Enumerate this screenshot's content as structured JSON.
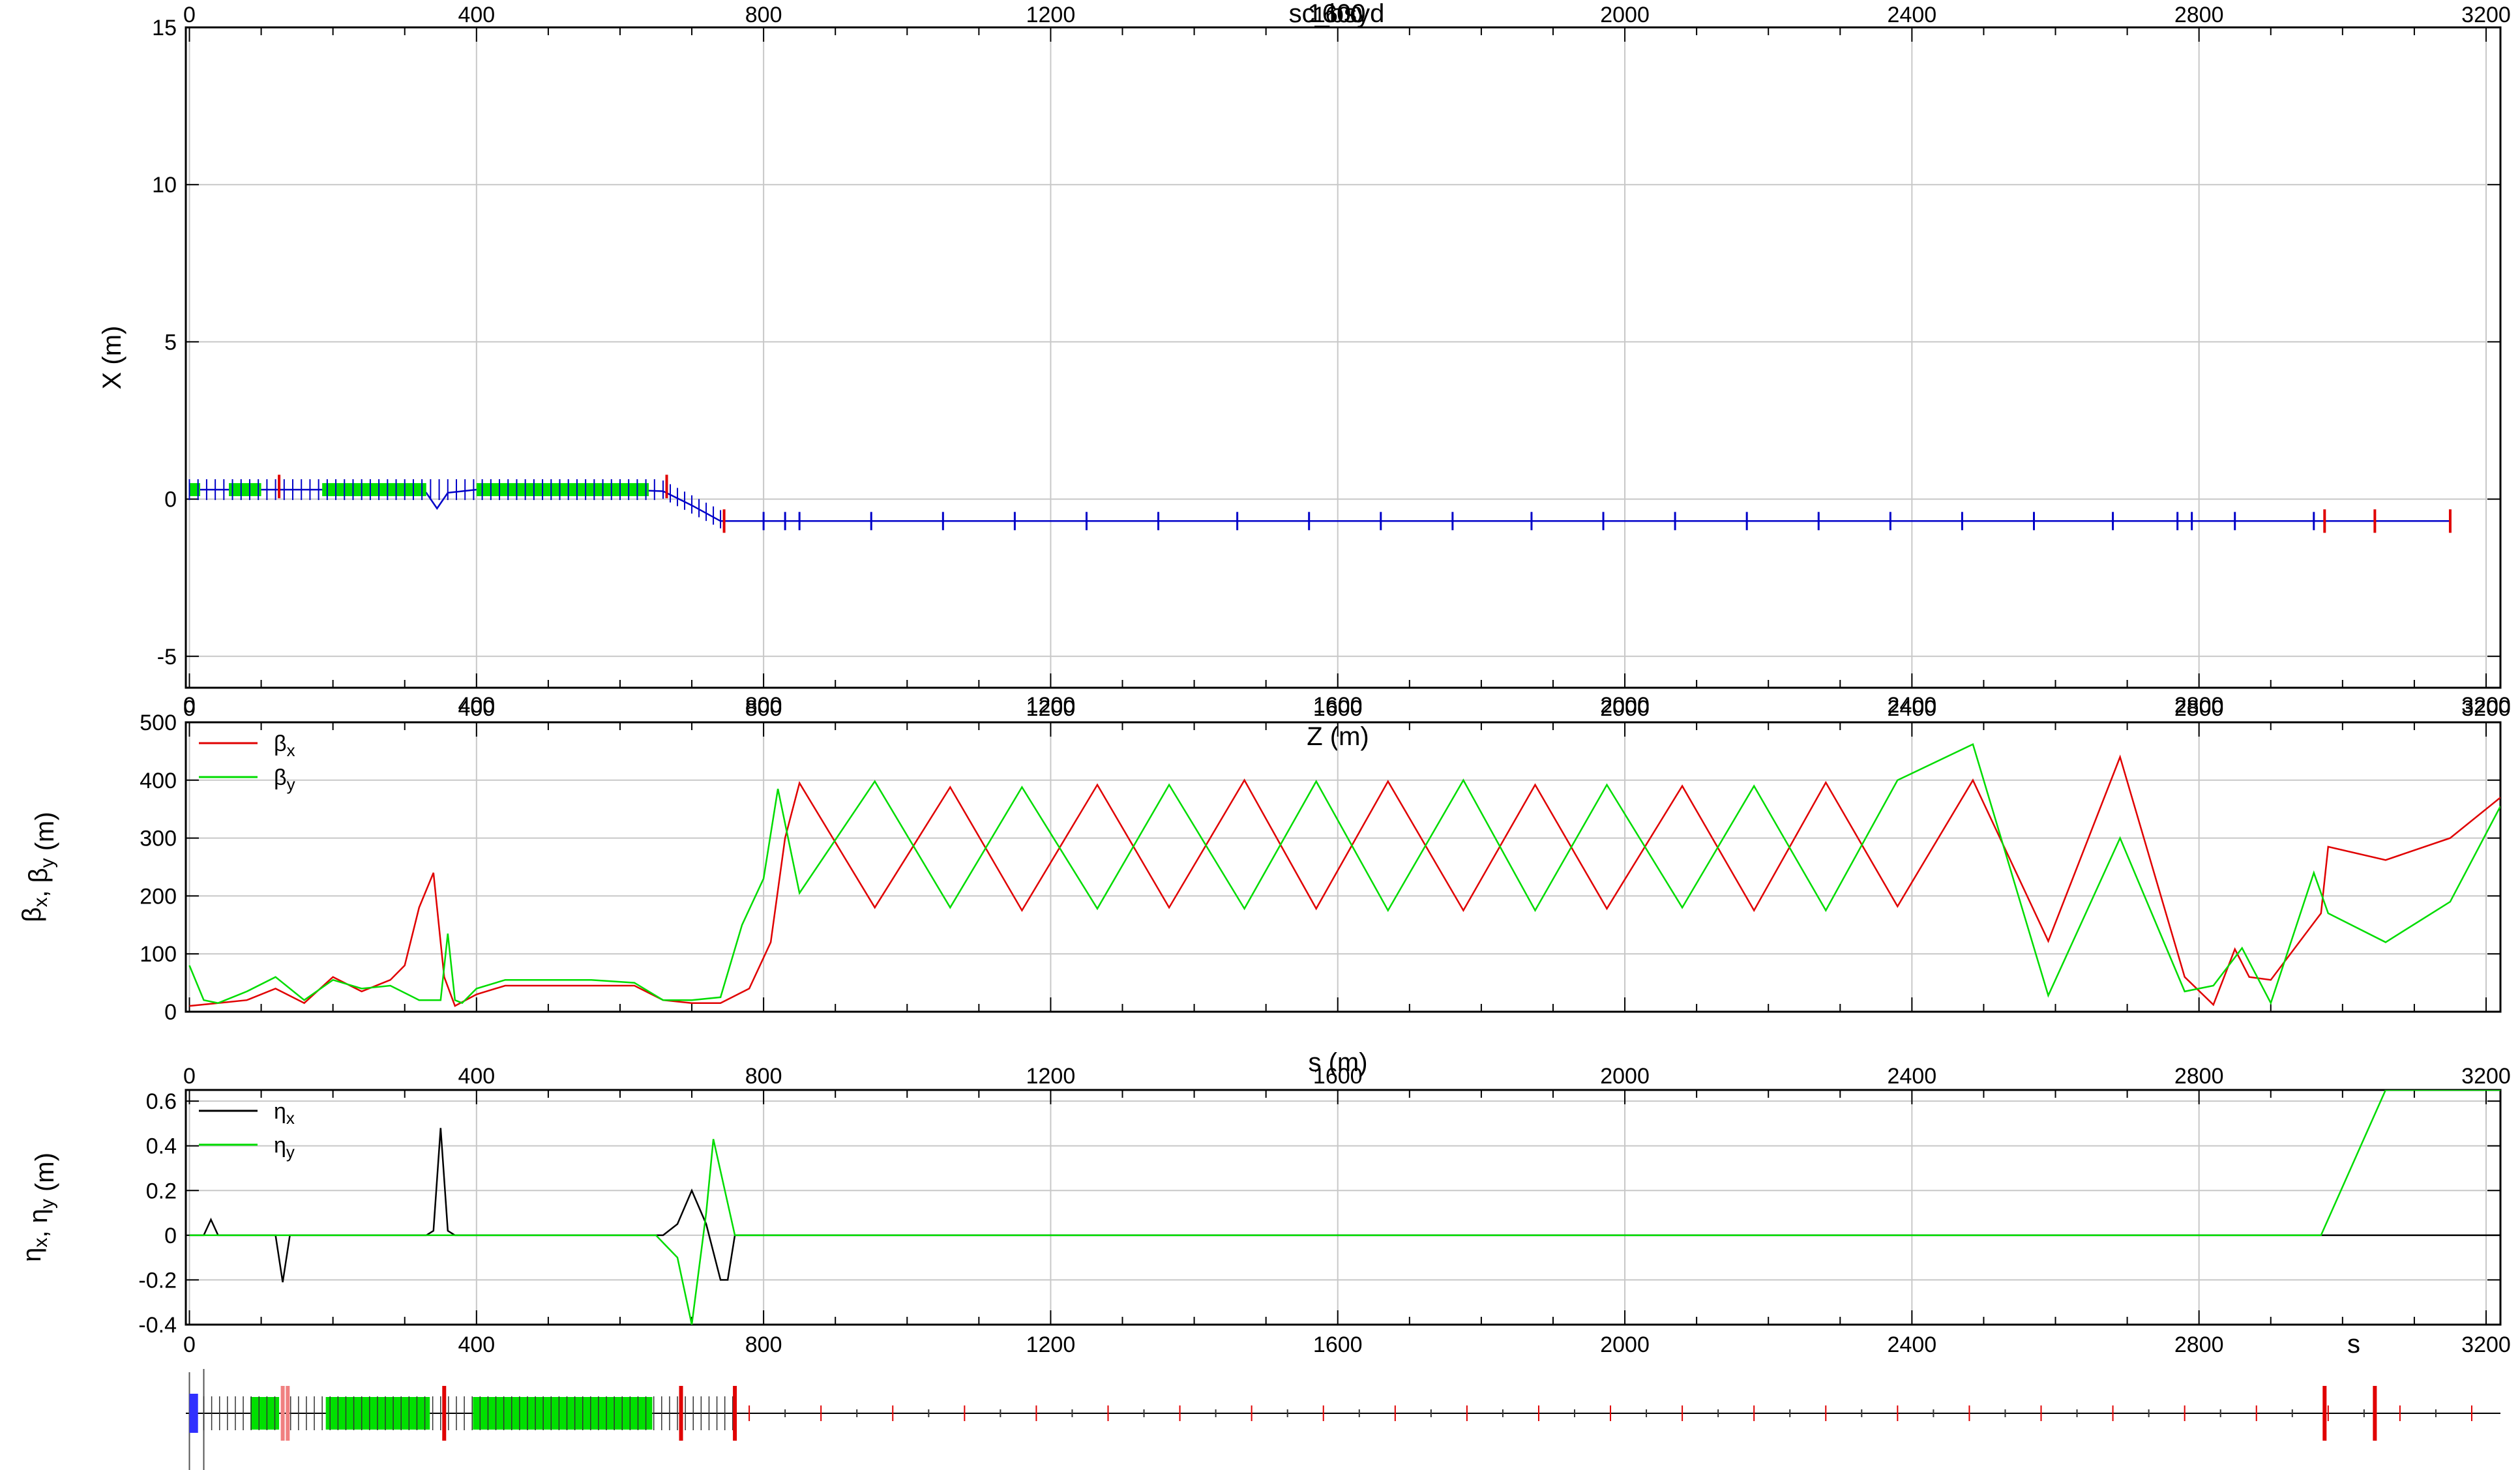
{
  "figure": {
    "title": "sc_bsyd",
    "overlay_text": "1600"
  },
  "chart_data": [
    {
      "type": "line",
      "id": "floor",
      "ylabel": "X (m)",
      "xlabel": "Z (m)",
      "xlim": [
        -5,
        3220
      ],
      "ylim": [
        -6,
        15
      ],
      "xticks": [
        0,
        400,
        800,
        1200,
        1600,
        2000,
        2400,
        2800,
        3200
      ],
      "yticks": [
        -5,
        0,
        5,
        10,
        15
      ],
      "grid": true,
      "series": [
        {
          "color": "#0000c8",
          "x": [
            0,
            100,
            200,
            300,
            330,
            345,
            360,
            400,
            500,
            600,
            660,
            700,
            740,
            780,
            1000,
            1600,
            2200,
            2800,
            3000,
            3150
          ],
          "y": [
            0.3,
            0.3,
            0.3,
            0.3,
            0.2,
            -0.3,
            0.2,
            0.3,
            0.3,
            0.3,
            0.25,
            -0.2,
            -0.7,
            -0.7,
            -0.7,
            -0.7,
            -0.7,
            -0.7,
            -0.7,
            -0.7
          ]
        }
      ]
    },
    {
      "type": "line",
      "id": "beta",
      "ylabel": "βx, βy (m)",
      "xlabel": "s (m)",
      "xlim": [
        -5,
        3220
      ],
      "ylim": [
        0,
        500
      ],
      "xticks": [
        0,
        400,
        800,
        1200,
        1600,
        2000,
        2400,
        2800,
        3200
      ],
      "yticks": [
        0,
        100,
        200,
        300,
        400,
        500
      ],
      "grid": true,
      "legend": "top-left",
      "series": [
        {
          "name": "βx",
          "color": "#e00000",
          "x": [
            0,
            40,
            80,
            120,
            160,
            200,
            240,
            280,
            300,
            320,
            340,
            355,
            370,
            400,
            440,
            500,
            560,
            620,
            660,
            700,
            740,
            780,
            810,
            830,
            850,
            955,
            1060,
            1160,
            1265,
            1365,
            1470,
            1570,
            1670,
            1775,
            1875,
            1975,
            2080,
            2180,
            2280,
            2380,
            2485,
            2590,
            2690,
            2780,
            2820,
            2850,
            2870,
            2900,
            2970,
            2980,
            3060,
            3150,
            3220
          ],
          "y": [
            10,
            15,
            20,
            40,
            15,
            60,
            35,
            55,
            80,
            180,
            240,
            60,
            10,
            30,
            45,
            45,
            45,
            45,
            20,
            15,
            15,
            40,
            120,
            300,
            395,
            180,
            388,
            175,
            392,
            180,
            400,
            178,
            398,
            175,
            392,
            178,
            390,
            175,
            396,
            182,
            400,
            122,
            440,
            60,
            12,
            108,
            60,
            55,
            170,
            285,
            262,
            300,
            370
          ]
        },
        {
          "name": "βy",
          "color": "#00dc00",
          "x": [
            0,
            20,
            40,
            80,
            120,
            160,
            200,
            240,
            280,
            320,
            350,
            360,
            370,
            380,
            400,
            440,
            500,
            560,
            620,
            660,
            700,
            740,
            770,
            800,
            820,
            850,
            955,
            1060,
            1160,
            1265,
            1365,
            1470,
            1570,
            1670,
            1775,
            1875,
            1975,
            2080,
            2180,
            2280,
            2380,
            2485,
            2590,
            2690,
            2780,
            2820,
            2860,
            2900,
            2960,
            2980,
            3060,
            3150,
            3220
          ],
          "y": [
            80,
            20,
            15,
            35,
            60,
            20,
            55,
            40,
            45,
            20,
            20,
            135,
            20,
            15,
            40,
            55,
            55,
            55,
            50,
            20,
            20,
            25,
            150,
            230,
            385,
            205,
            398,
            180,
            388,
            178,
            392,
            178,
            398,
            175,
            400,
            175,
            392,
            180,
            390,
            175,
            400,
            462,
            28,
            300,
            35,
            45,
            110,
            15,
            240,
            170,
            120,
            190,
            355
          ]
        }
      ]
    },
    {
      "type": "line",
      "id": "eta",
      "ylabel": "ηx, ηy (m)",
      "xlabel": "s",
      "xlim": [
        -5,
        3220
      ],
      "ylim": [
        -0.4,
        0.65
      ],
      "xticks": [
        0,
        400,
        800,
        1200,
        1600,
        2000,
        2400,
        2800,
        3200
      ],
      "yticks": [
        -0.4,
        -0.2,
        0,
        0.2,
        0.4,
        0.6
      ],
      "grid": true,
      "legend": "top-left",
      "series": [
        {
          "name": "ηx",
          "color": "#000000",
          "x": [
            0,
            20,
            30,
            40,
            120,
            130,
            140,
            330,
            340,
            350,
            360,
            370,
            660,
            680,
            700,
            720,
            740,
            750,
            760,
            3220
          ],
          "y": [
            0,
            0,
            0.07,
            0,
            0,
            -0.21,
            0,
            0,
            0.02,
            0.48,
            0.02,
            0,
            0,
            0.05,
            0.2,
            0.05,
            -0.2,
            -0.2,
            0,
            0
          ]
        },
        {
          "name": "ηy",
          "color": "#00dc00",
          "x": [
            0,
            650,
            680,
            700,
            720,
            730,
            760,
            780,
            2970,
            3060,
            3220
          ],
          "y": [
            0,
            0,
            -0.1,
            -0.4,
            0.1,
            0.43,
            0,
            0,
            0,
            0.65,
            0.65
          ]
        }
      ]
    }
  ],
  "colors": {
    "grid": "#c8c8c8",
    "frame": "#000000",
    "bpm": "#0000c8",
    "quad": "#00e000",
    "bend": "#e00000",
    "bend_light": "#f08080",
    "axis_line": "#000000"
  }
}
